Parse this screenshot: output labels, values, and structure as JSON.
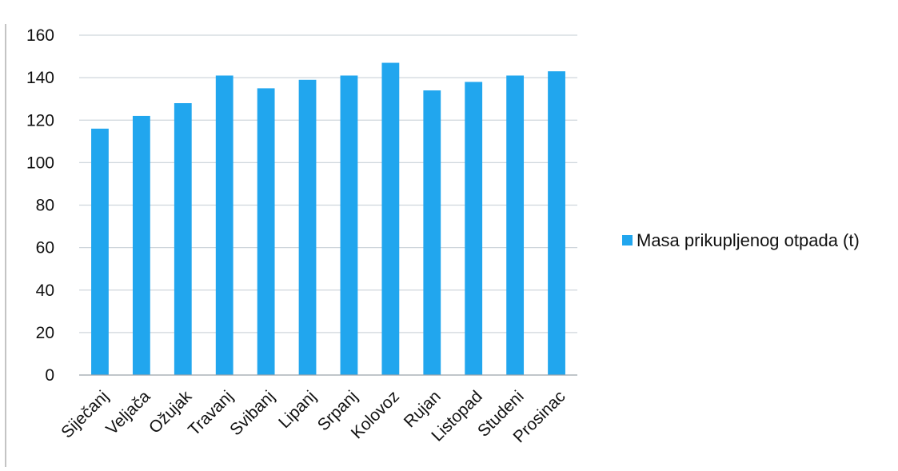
{
  "chart_data": {
    "type": "bar",
    "title": "",
    "xlabel": "",
    "ylabel": "",
    "categories": [
      "Siječanj",
      "Veljača",
      "Ožujak",
      "Travanj",
      "Svibanj",
      "Lipanj",
      "Srpanj",
      "Kolovoz",
      "Rujan",
      "Listopad",
      "Studeni",
      "Prosinac"
    ],
    "series": [
      {
        "name": "Masa prikupljenog otpada (t)",
        "color": "#21a6ee",
        "values": [
          116,
          122,
          128,
          141,
          135,
          139,
          141,
          147,
          134,
          138,
          141,
          143
        ]
      }
    ],
    "ylim": [
      0,
      160
    ],
    "yticks": [
      0,
      20,
      40,
      60,
      80,
      100,
      120,
      140,
      160
    ],
    "grid": true,
    "legend_position": "right"
  }
}
